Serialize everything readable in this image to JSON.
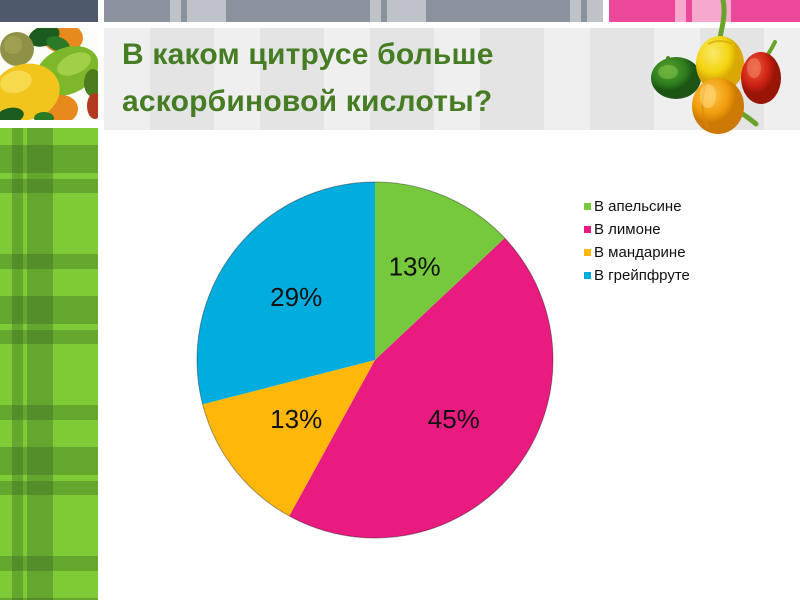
{
  "title": {
    "line1": "В каком цитрусе больше",
    "line2": "аскорбиновой кислоты?",
    "color": "#467c24"
  },
  "decor": {
    "topbar_corner_color": "#4e5a6b",
    "topbar_gray_base": "#8a929d",
    "topbar_gray_light": "#bec3ca",
    "topbar_pink_base": "#ec4899",
    "topbar_pink_light": "#f6a8cd",
    "sidebar_plaid_green": "#7ecb35",
    "title_band_bg": "#e9e9e9",
    "citrus_photo": "photo of lemons and limes",
    "peppers_photo": "photo of yellow, green, orange and red bell peppers"
  },
  "chart_data": {
    "type": "pie",
    "title": "",
    "labels": [
      "В апельсине",
      "В лимоне",
      "В мандарине",
      "В грейпфруте"
    ],
    "values": [
      13,
      45,
      13,
      29
    ],
    "data_labels": [
      "13%",
      "45%",
      "13%",
      "29%"
    ],
    "colors": [
      "#76c93c",
      "#e91a80",
      "#ffb70a",
      "#01addf"
    ],
    "start_angle_deg": 0,
    "direction": "clockwise",
    "legend_position": "right",
    "data_label_color": "#111111",
    "outline_color": "rgba(0,0,0,0.35)"
  }
}
